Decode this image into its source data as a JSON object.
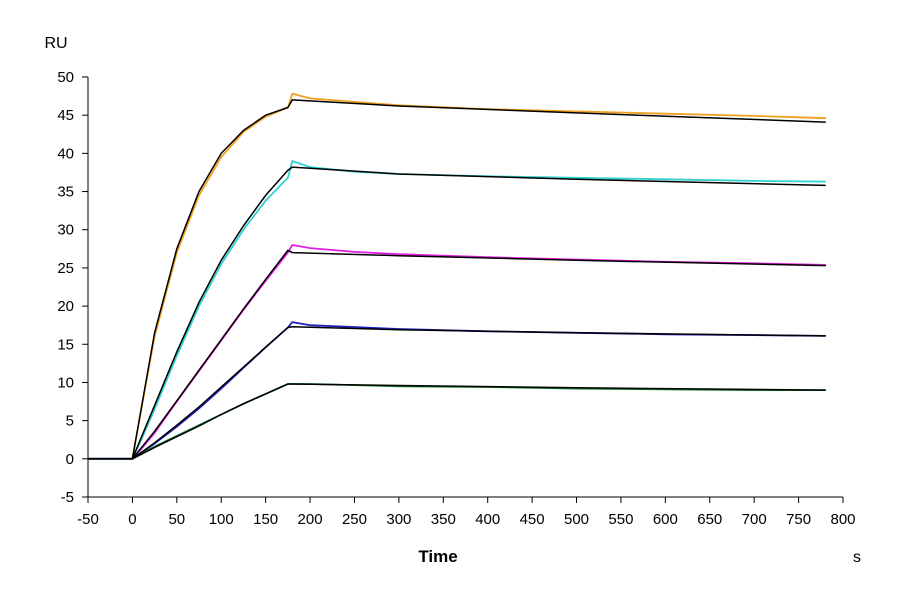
{
  "chart_data": {
    "type": "line",
    "title": "",
    "xlabel": "Time",
    "ylabel": "RU",
    "x_unit": "s",
    "xlim": [
      -50,
      800
    ],
    "ylim": [
      -5,
      50
    ],
    "x_ticks": [
      -50,
      0,
      50,
      100,
      150,
      200,
      250,
      300,
      350,
      400,
      450,
      500,
      550,
      600,
      650,
      700,
      750,
      800
    ],
    "y_ticks": [
      -5,
      0,
      5,
      10,
      15,
      20,
      25,
      30,
      35,
      40,
      45,
      50
    ],
    "grid": false,
    "legend": "none",
    "series": [
      {
        "color": "#f0a020",
        "x": [
          -50,
          0,
          10,
          25,
          50,
          75,
          100,
          125,
          150,
          175,
          180,
          200,
          300,
          400,
          500,
          600,
          700,
          780
        ],
        "y": [
          0,
          0,
          6.5,
          16,
          27,
          34.5,
          39.5,
          42.8,
          44.8,
          46,
          47.8,
          47.2,
          46.3,
          45.8,
          45.5,
          45.2,
          44.9,
          44.6
        ]
      },
      {
        "color": "#30d0d0",
        "x": [
          -50,
          0,
          10,
          25,
          50,
          75,
          100,
          125,
          150,
          175,
          180,
          200,
          250,
          300,
          400,
          500,
          600,
          700,
          780
        ],
        "y": [
          0,
          0,
          2.5,
          6.5,
          13.5,
          20,
          25.5,
          30,
          33.8,
          36.8,
          39,
          38.2,
          37.6,
          37.3,
          37,
          36.8,
          36.6,
          36.4,
          36.3
        ]
      },
      {
        "color": "#e020e0",
        "x": [
          -50,
          0,
          10,
          25,
          50,
          75,
          100,
          125,
          150,
          175,
          180,
          200,
          250,
          300,
          400,
          500,
          600,
          700,
          780
        ],
        "y": [
          0,
          0,
          1.3,
          3.4,
          7.5,
          11.5,
          15.5,
          19.5,
          23.3,
          27,
          28,
          27.6,
          27.1,
          26.8,
          26.4,
          26.1,
          25.8,
          25.6,
          25.4
        ]
      },
      {
        "color": "#2020c0",
        "x": [
          -50,
          0,
          25,
          50,
          75,
          100,
          125,
          150,
          175,
          180,
          200,
          300,
          400,
          500,
          600,
          700,
          780
        ],
        "y": [
          0,
          0,
          2,
          4.2,
          6.6,
          9.2,
          11.9,
          14.6,
          17.2,
          17.9,
          17.5,
          17,
          16.7,
          16.5,
          16.3,
          16.2,
          16.1
        ]
      },
      {
        "color": "#108030",
        "x": [
          -50,
          0,
          25,
          50,
          75,
          100,
          125,
          150,
          175,
          200,
          300,
          400,
          500,
          600,
          700,
          780
        ],
        "y": [
          0,
          0,
          1.6,
          3,
          4.4,
          5.8,
          7.2,
          8.5,
          9.8,
          9.8,
          9.5,
          9.4,
          9.2,
          9.1,
          9,
          9
        ]
      }
    ],
    "fits": [
      {
        "color": "#000000",
        "x": [
          -50,
          0,
          25,
          50,
          75,
          100,
          125,
          150,
          175,
          180,
          300,
          500,
          780
        ],
        "y": [
          0,
          0,
          16.5,
          27.5,
          35,
          40,
          43,
          45,
          46,
          47,
          46.2,
          45.3,
          44.1
        ]
      },
      {
        "color": "#000000",
        "x": [
          -50,
          0,
          25,
          50,
          75,
          100,
          125,
          150,
          175,
          180,
          300,
          500,
          780
        ],
        "y": [
          0,
          0,
          7,
          14,
          20.5,
          26,
          30.5,
          34.5,
          37.8,
          38.2,
          37.3,
          36.6,
          35.8
        ]
      },
      {
        "color": "#000000",
        "x": [
          -50,
          0,
          25,
          50,
          75,
          100,
          125,
          150,
          175,
          180,
          300,
          500,
          780
        ],
        "y": [
          0,
          0,
          3.6,
          7.6,
          11.6,
          15.6,
          19.6,
          23.5,
          27.3,
          27,
          26.6,
          26,
          25.3
        ]
      },
      {
        "color": "#000000",
        "x": [
          -50,
          0,
          25,
          50,
          75,
          100,
          125,
          150,
          175,
          180,
          300,
          500,
          780
        ],
        "y": [
          0,
          0,
          2.1,
          4.4,
          6.8,
          9.4,
          12,
          14.6,
          17.2,
          17.3,
          16.9,
          16.5,
          16.1
        ]
      },
      {
        "color": "#000000",
        "x": [
          -50,
          0,
          25,
          50,
          75,
          100,
          125,
          150,
          175,
          180,
          300,
          500,
          780
        ],
        "y": [
          0,
          0,
          1.5,
          2.9,
          4.3,
          5.8,
          7.2,
          8.5,
          9.8,
          9.8,
          9.6,
          9.3,
          9
        ]
      }
    ]
  }
}
